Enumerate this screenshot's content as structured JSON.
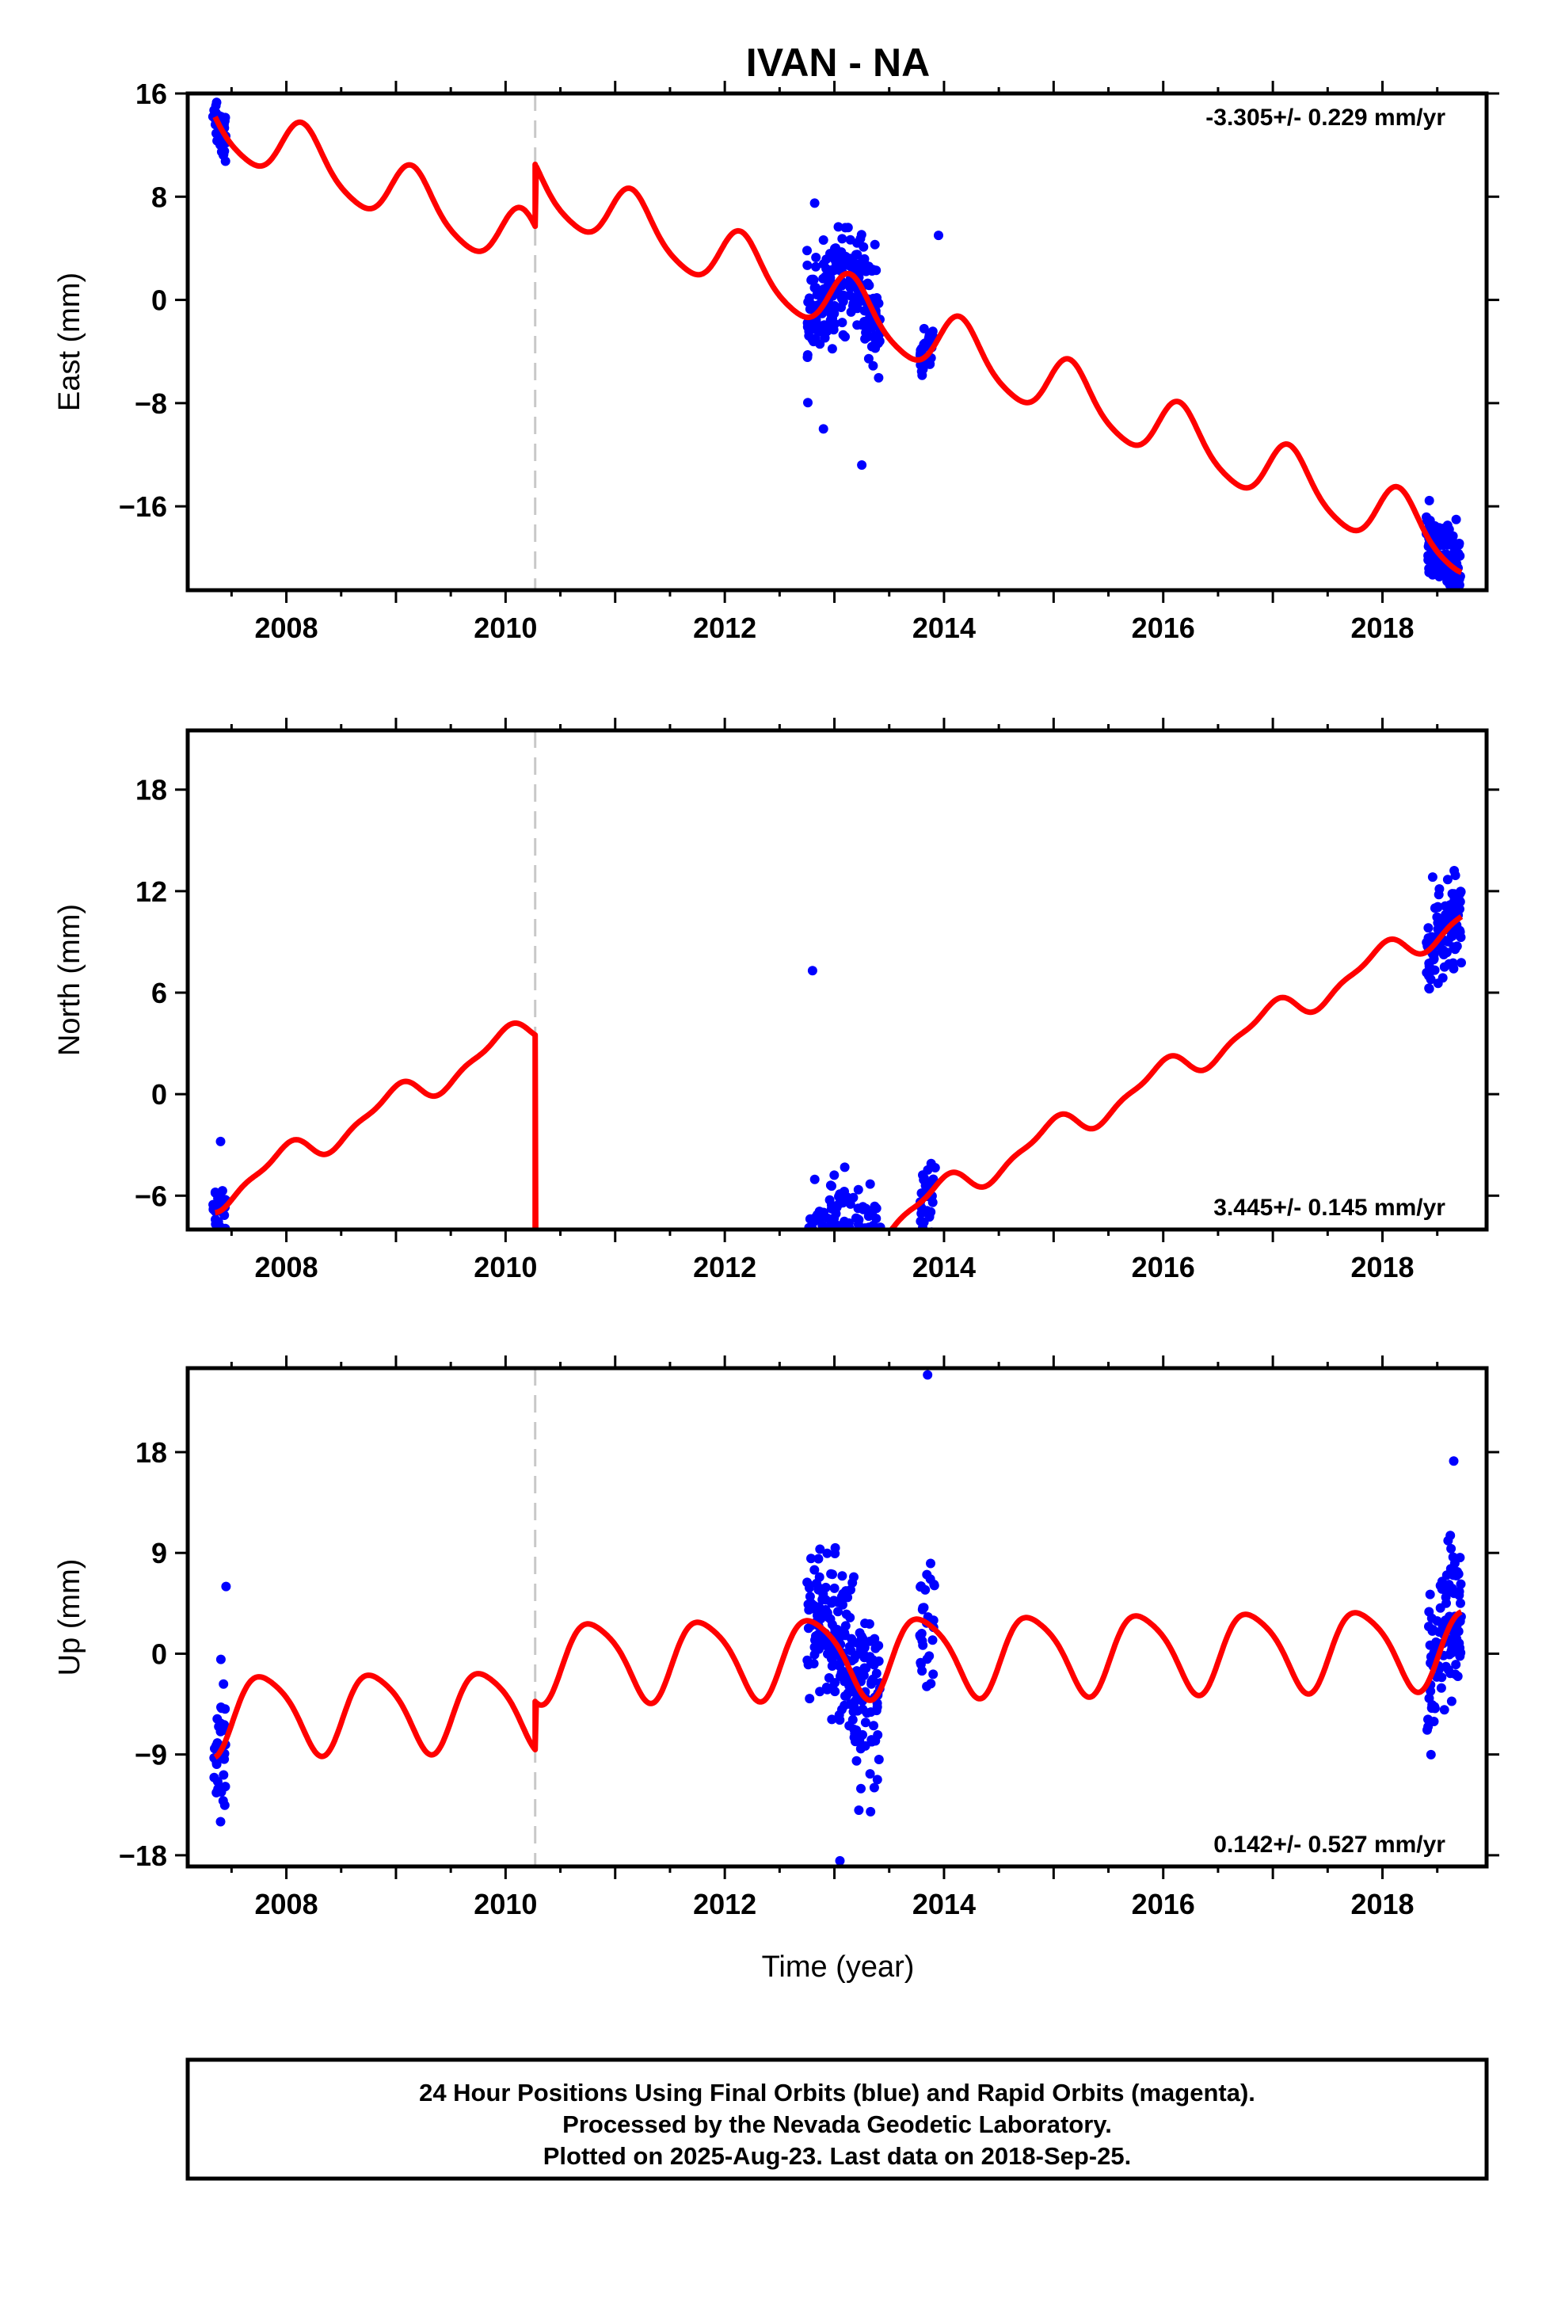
{
  "chart_data": {
    "type": "scatter",
    "title": "IVAN - NA",
    "xlabel": "Time (year)",
    "xlim": [
      2007.1,
      2018.95
    ],
    "x_ticks": [
      2008,
      2010,
      2012,
      2014,
      2016,
      2018
    ],
    "offset_epoch": 2010.27,
    "colors": {
      "points": "#0000ff",
      "model": "#ff0000",
      "offset_line": "#c8c8c8"
    },
    "panels": [
      {
        "key": "east",
        "ylabel": "East (mm)",
        "ylim": [
          -22.5,
          16
        ],
        "y_ticks": [
          16,
          8,
          0,
          -8,
          -16
        ],
        "y_tick_labels": [
          "16",
          "8",
          "0",
          "−8",
          "−16"
        ],
        "rate_text": "-3.305+/- 0.229 mm/yr",
        "rate_position": "top-right",
        "model": {
          "intercept": 13.7,
          "t0": 2007.35,
          "slope": -3.305,
          "amp": 2.3,
          "phase": 0.55,
          "amp2": 0.4,
          "phase2": 0.1,
          "offset": 4.8
        },
        "clusters": [
          {
            "start": 2007.33,
            "end": 2007.45,
            "n": 35,
            "sd": 1.1
          },
          {
            "start": 2012.75,
            "end": 2013.42,
            "n": 230,
            "sd": 1.9
          },
          {
            "start": 2013.78,
            "end": 2013.92,
            "n": 30,
            "sd": 1.0
          },
          {
            "start": 2018.4,
            "end": 2018.72,
            "n": 110,
            "sd": 1.4
          }
        ],
        "outliers": [
          {
            "x": 2012.9,
            "y": -10
          },
          {
            "x": 2013.25,
            "y": -12.8
          },
          {
            "x": 2012.82,
            "y": 7.5
          },
          {
            "x": 2013.95,
            "y": 5
          }
        ]
      },
      {
        "key": "north",
        "ylabel": "North (mm)",
        "ylim": [
          -8,
          21.5
        ],
        "y_ticks": [
          18,
          12,
          6,
          0,
          -6
        ],
        "y_tick_labels": [
          "18",
          "12",
          "6",
          "0",
          "−6"
        ],
        "rate_text": "3.445+/- 0.145 mm/yr",
        "rate_position": "bottom-right",
        "model": {
          "intercept": -6.1,
          "t0": 2007.35,
          "slope": 3.445,
          "amp": 0.8,
          "phase": 1.8,
          "amp2": 0.3,
          "phase2": 0.4,
          "offset": -22.6
        },
        "clusters": [
          {
            "start": 2007.33,
            "end": 2007.45,
            "n": 35,
            "sd": 0.5
          },
          {
            "start": 2012.75,
            "end": 2013.42,
            "n": 230,
            "sd": 1.5
          },
          {
            "start": 2013.78,
            "end": 2013.92,
            "n": 30,
            "sd": 1.0
          },
          {
            "start": 2018.4,
            "end": 2018.72,
            "n": 110,
            "sd": 1.3
          }
        ],
        "outliers": [
          {
            "x": 2012.8,
            "y": 7.3
          },
          {
            "x": 2007.4,
            "y": -2.8
          }
        ]
      },
      {
        "key": "up",
        "ylabel": "Up (mm)",
        "ylim": [
          -19,
          25.5
        ],
        "y_ticks": [
          18,
          9,
          0,
          -9,
          -18
        ],
        "y_tick_labels": [
          "18",
          "9",
          "0",
          "−9",
          "−18"
        ],
        "rate_text": "0.142+/- 0.527 mm/yr",
        "rate_position": "bottom-right",
        "model": {
          "intercept": -5.3,
          "t0": 2007.35,
          "slope": 0.142,
          "amp": 3.5,
          "phase": 2.8,
          "amp2": 0.6,
          "phase2": 0.2,
          "offset": 4.3
        },
        "clusters": [
          {
            "start": 2007.33,
            "end": 2007.45,
            "n": 35,
            "sd": 3.2
          },
          {
            "start": 2012.75,
            "end": 2013.42,
            "n": 230,
            "sd": 3.8
          },
          {
            "start": 2013.78,
            "end": 2013.92,
            "n": 30,
            "sd": 3.5
          },
          {
            "start": 2018.4,
            "end": 2018.72,
            "n": 110,
            "sd": 3.5
          }
        ],
        "outliers": [
          {
            "x": 2013.85,
            "y": 24.9
          },
          {
            "x": 2013.05,
            "y": -18.5
          },
          {
            "x": 2018.65,
            "y": 17.2
          },
          {
            "x": 2007.45,
            "y": 6
          },
          {
            "x": 2007.4,
            "y": -15
          }
        ]
      }
    ]
  },
  "footer": {
    "line1": "24 Hour Positions Using Final Orbits (blue) and Rapid Orbits (magenta).",
    "line2": "Processed by the Nevada Geodetic Laboratory.",
    "line3": "Plotted on 2025-Aug-23. Last data on 2018-Sep-25."
  }
}
